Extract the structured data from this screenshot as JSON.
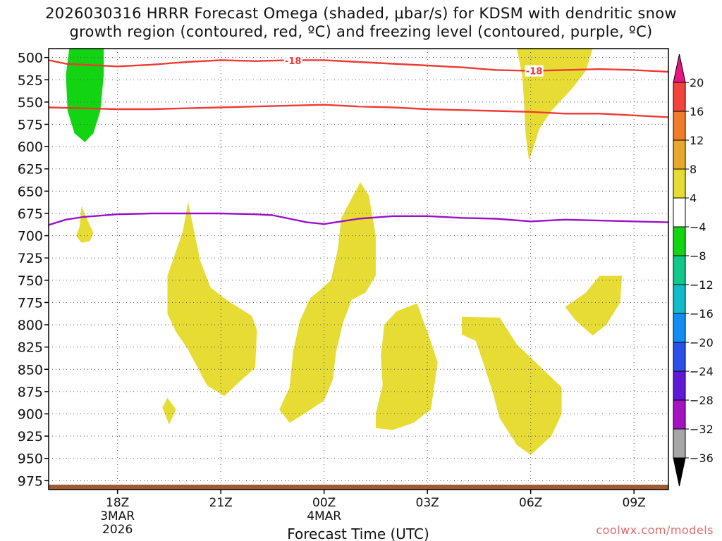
{
  "header": {
    "title_line1": "2026030316 HRRR Forecast Omega (shaded, μbar/s) for KDSM with dendritic snow",
    "title_line2": "growth region (contoured, red, ºC) and freezing level (contoured, purple, ºC)"
  },
  "credit": "coolwx.com/models",
  "chart_data": {
    "type": "area",
    "title": "2026030316 HRRR Forecast Omega (shaded, μbar/s) for KDSM with dendritic snow growth region (contoured, red, ºC) and freezing level (contoured, purple, ºC)",
    "xlabel": "Forecast Time (UTC)",
    "ylabel": "",
    "x_range_hours": [
      16,
      34
    ],
    "y_range_mb": [
      490,
      985
    ],
    "y_scale": "pressure (inverted)",
    "grid": true,
    "x_ticks": [
      {
        "hour": 18,
        "lines": [
          "18Z",
          "3MAR",
          "2026"
        ]
      },
      {
        "hour": 21,
        "lines": [
          "21Z"
        ]
      },
      {
        "hour": 24,
        "lines": [
          "00Z",
          "4MAR"
        ]
      },
      {
        "hour": 27,
        "lines": [
          "03Z"
        ]
      },
      {
        "hour": 30,
        "lines": [
          "06Z"
        ]
      },
      {
        "hour": 33,
        "lines": [
          "09Z"
        ]
      }
    ],
    "y_ticks": [
      500,
      525,
      550,
      575,
      600,
      625,
      650,
      675,
      700,
      725,
      750,
      775,
      800,
      825,
      850,
      875,
      900,
      925,
      950,
      975
    ],
    "contours": [
      {
        "name": "-18",
        "color": "#ee3a33",
        "label": "-18",
        "points": [
          [
            16,
            503
          ],
          [
            16.5,
            507
          ],
          [
            17,
            508
          ],
          [
            18,
            510
          ],
          [
            19,
            508
          ],
          [
            20,
            505
          ],
          [
            21,
            503
          ],
          [
            22,
            504
          ],
          [
            23,
            503
          ],
          [
            24,
            503
          ],
          [
            25,
            505
          ],
          [
            26,
            507
          ],
          [
            27,
            509
          ],
          [
            28,
            511
          ],
          [
            29,
            514
          ],
          [
            30,
            515
          ],
          [
            31,
            514
          ],
          [
            32,
            513
          ],
          [
            33,
            514
          ],
          [
            34,
            516
          ]
        ],
        "label_at": [
          [
            23.1,
            503.5
          ],
          [
            30.1,
            515
          ]
        ]
      },
      {
        "name": "-12",
        "color": "#ee3a33",
        "label": "",
        "points": [
          [
            16,
            556
          ],
          [
            17,
            557
          ],
          [
            18,
            558
          ],
          [
            19,
            558
          ],
          [
            20,
            557
          ],
          [
            21,
            556
          ],
          [
            22,
            555
          ],
          [
            23,
            554
          ],
          [
            24,
            553
          ],
          [
            25,
            555
          ],
          [
            26,
            556
          ],
          [
            27,
            558
          ],
          [
            28,
            559
          ],
          [
            29,
            560
          ],
          [
            30,
            561
          ],
          [
            31,
            563
          ],
          [
            32,
            563
          ],
          [
            33,
            565
          ],
          [
            34,
            567
          ]
        ]
      },
      {
        "name": "0",
        "color": "#9a10c9",
        "label": "",
        "points": [
          [
            16,
            688
          ],
          [
            16.5,
            682
          ],
          [
            17,
            679
          ],
          [
            18,
            676
          ],
          [
            19,
            675
          ],
          [
            20,
            675
          ],
          [
            21,
            675
          ],
          [
            22,
            676
          ],
          [
            22.5,
            677
          ],
          [
            23,
            681
          ],
          [
            23.5,
            685
          ],
          [
            24,
            687
          ],
          [
            24.5,
            684
          ],
          [
            25,
            681
          ],
          [
            26,
            678
          ],
          [
            27,
            678
          ],
          [
            28,
            680
          ],
          [
            29,
            681
          ],
          [
            30,
            684
          ],
          [
            31,
            682
          ],
          [
            32,
            683
          ],
          [
            33,
            684
          ],
          [
            34,
            685
          ]
        ]
      }
    ],
    "shaded_regions": [
      {
        "range": "-8 to -4",
        "color": "#12d412",
        "points": [
          [
            16.6,
            490
          ],
          [
            17.6,
            490
          ],
          [
            17.6,
            520
          ],
          [
            17.5,
            560
          ],
          [
            17.3,
            585
          ],
          [
            17.05,
            595
          ],
          [
            16.75,
            585
          ],
          [
            16.55,
            560
          ],
          [
            16.5,
            520
          ]
        ]
      },
      {
        "range": "4 to 8",
        "color": "#e6dc34",
        "points": [
          [
            29.6,
            490
          ],
          [
            31.8,
            490
          ],
          [
            31.6,
            515
          ],
          [
            31.2,
            535
          ],
          [
            30.6,
            560
          ],
          [
            30.25,
            580
          ],
          [
            30.05,
            605
          ],
          [
            29.95,
            616
          ],
          [
            29.85,
            585
          ],
          [
            29.8,
            545
          ],
          [
            29.75,
            520
          ]
        ]
      },
      {
        "range": "4 to 8",
        "color": "#e6dc34",
        "points": [
          [
            16.95,
            667
          ],
          [
            17.3,
            697
          ],
          [
            17.2,
            706
          ],
          [
            16.95,
            708
          ],
          [
            16.8,
            700
          ],
          [
            16.9,
            690
          ]
        ]
      },
      {
        "range": "4 to 8",
        "color": "#e6dc34",
        "points": [
          [
            20.05,
            662
          ],
          [
            20.4,
            728
          ],
          [
            20.7,
            758
          ],
          [
            21.2,
            773
          ],
          [
            21.9,
            790
          ],
          [
            22.05,
            806
          ],
          [
            22.0,
            848
          ],
          [
            21.6,
            862
          ],
          [
            21.1,
            880
          ],
          [
            20.6,
            868
          ],
          [
            20.05,
            828
          ],
          [
            19.7,
            808
          ],
          [
            19.45,
            788
          ],
          [
            19.45,
            745
          ],
          [
            19.9,
            695
          ]
        ]
      },
      {
        "range": "4 to 8",
        "color": "#e6dc34",
        "points": [
          [
            19.45,
            882
          ],
          [
            19.7,
            895
          ],
          [
            19.5,
            912
          ],
          [
            19.3,
            893
          ]
        ]
      },
      {
        "range": "4 to 8",
        "color": "#e6dc34",
        "points": [
          [
            25.05,
            640
          ],
          [
            25.3,
            655
          ],
          [
            25.5,
            700
          ],
          [
            25.5,
            745
          ],
          [
            25.2,
            764
          ],
          [
            24.8,
            772
          ],
          [
            24.55,
            798
          ],
          [
            24.35,
            830
          ],
          [
            24.25,
            862
          ],
          [
            24.0,
            885
          ],
          [
            23.5,
            898
          ],
          [
            23.0,
            910
          ],
          [
            22.7,
            895
          ],
          [
            23.0,
            870
          ],
          [
            23.1,
            830
          ],
          [
            23.3,
            795
          ],
          [
            23.6,
            770
          ],
          [
            23.85,
            762
          ],
          [
            24.2,
            750
          ],
          [
            24.4,
            715
          ],
          [
            24.5,
            680
          ]
        ]
      },
      {
        "range": "4 to 8",
        "color": "#e6dc34",
        "points": [
          [
            26.7,
            776
          ],
          [
            27.0,
            808
          ],
          [
            27.3,
            842
          ],
          [
            27.1,
            895
          ],
          [
            26.6,
            910
          ],
          [
            26.0,
            918
          ],
          [
            25.5,
            916
          ],
          [
            25.5,
            900
          ],
          [
            25.7,
            868
          ],
          [
            25.65,
            835
          ],
          [
            25.75,
            800
          ],
          [
            26.1,
            785
          ]
        ]
      },
      {
        "range": "4 to 8",
        "color": "#e6dc34",
        "points": [
          [
            28.0,
            791
          ],
          [
            29.1,
            792
          ],
          [
            29.6,
            822
          ],
          [
            30.3,
            848
          ],
          [
            30.9,
            870
          ],
          [
            30.9,
            900
          ],
          [
            30.6,
            925
          ],
          [
            30.0,
            946
          ],
          [
            29.6,
            935
          ],
          [
            29.1,
            905
          ],
          [
            28.9,
            876
          ],
          [
            28.6,
            840
          ],
          [
            28.4,
            818
          ],
          [
            28.0,
            811
          ]
        ]
      },
      {
        "range": "4 to 8",
        "color": "#e6dc34",
        "points": [
          [
            32.0,
            745
          ],
          [
            32.65,
            745
          ],
          [
            32.6,
            775
          ],
          [
            32.2,
            800
          ],
          [
            31.8,
            812
          ],
          [
            31.3,
            795
          ],
          [
            31.0,
            780
          ],
          [
            31.6,
            764
          ]
        ]
      }
    ],
    "colorbar": {
      "tick_labels": [
        "20",
        "16",
        "12",
        "8",
        "4",
        "−4",
        "−8",
        "−12",
        "−16",
        "−20",
        "−24",
        "−28",
        "−32",
        "−36"
      ],
      "bins": [
        {
          "range": "16 to 20",
          "color": "#f2443c"
        },
        {
          "range": "12 to 16",
          "color": "#ef7c2a"
        },
        {
          "range": "8 to 12",
          "color": "#e8a82e"
        },
        {
          "range": "4 to 8",
          "color": "#e6dc34"
        },
        {
          "range": "-4 to 4",
          "color": "#ffffff"
        },
        {
          "range": "-8 to -4",
          "color": "#12d412"
        },
        {
          "range": "-12 to -8",
          "color": "#0fc88a"
        },
        {
          "range": "-16 to -12",
          "color": "#10bcc8"
        },
        {
          "range": "-20 to -16",
          "color": "#148df2"
        },
        {
          "range": "-24 to -20",
          "color": "#2a50e8"
        },
        {
          "range": "-28 to -24",
          "color": "#6018d6"
        },
        {
          "range": "-32 to -28",
          "color": "#a412c2"
        },
        {
          "range": "-36 to -32",
          "color": "#a6a6a6"
        }
      ],
      "over_color": "#e8157e",
      "under_color": "#000000"
    },
    "ground_color": "#a05a32"
  }
}
